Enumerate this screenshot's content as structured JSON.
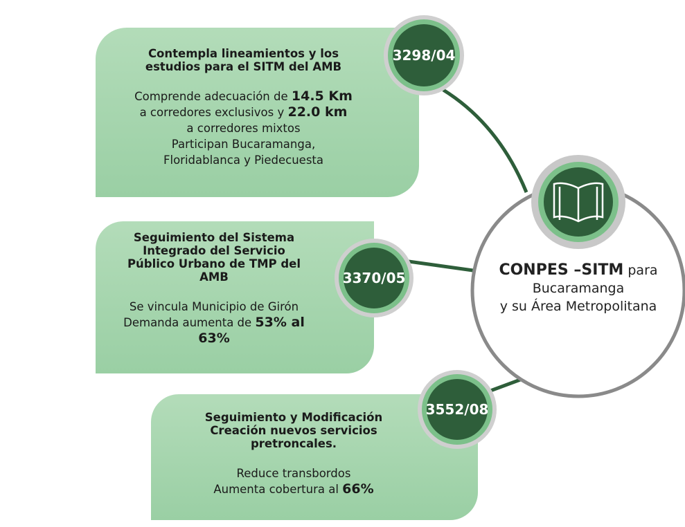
{
  "center": {
    "strong": "CONPES –SITM",
    "text": "para",
    "lines": [
      "Bucaramanga",
      "y su Área Metropolitana"
    ]
  },
  "nodes": [
    {
      "code": "3298/04",
      "title": [
        "Contempla lineamientos y los",
        "estudios para el SITM del AMB"
      ],
      "body": [
        {
          "text": "Comprende adecuación de",
          "strong": "14.5 Km"
        },
        {
          "text": "a corredores exclusivos y",
          "strong": "22.0 km"
        },
        {
          "text": "a corredores mixtos"
        },
        {
          "text": "Participan Bucaramanga,"
        },
        {
          "text": "Floridablanca y Piedecuesta"
        }
      ]
    },
    {
      "code": "3370/05",
      "title": [
        "Seguimiento del Sistema",
        "Integrado del Servicio",
        "Público Urbano de TMP del",
        "AMB"
      ],
      "body": [
        {
          "text": "Se vincula Municipio de Girón"
        },
        {
          "text": "Demanda aumenta de",
          "strong": "53% al"
        },
        {
          "strong": "63%"
        }
      ]
    },
    {
      "code": "3552/08",
      "title": [
        "Seguimiento y Modificación",
        "Creación nuevos servicios",
        "pretroncales."
      ],
      "body": [
        {
          "text": "Reduce transbordos"
        },
        {
          "text": "Aumenta cobertura al",
          "strong": "66%"
        }
      ]
    }
  ]
}
